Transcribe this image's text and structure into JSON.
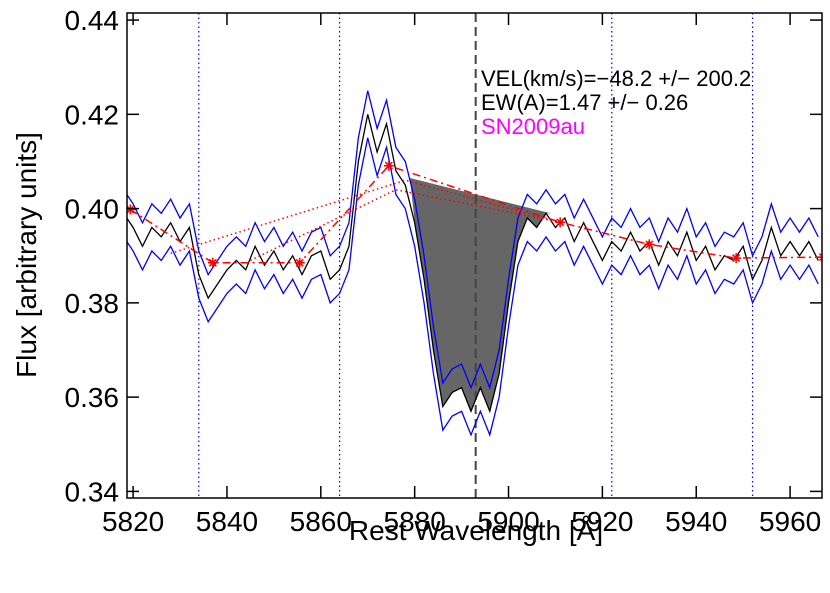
{
  "chart_data": {
    "type": "line",
    "xlabel": "Rest Wavelength [Å]",
    "ylabel": "Flux [arbitrary units]",
    "annotations": [
      "VEL(km/s)=−48.2 +/− 200.2",
      "EW(A)=1.47 +/− 0.26",
      "SN2009au"
    ],
    "annotation_colors": [
      "#000000",
      "#000000",
      "#ff00ff"
    ],
    "xlim": [
      5818.7,
      5966.8
    ],
    "ylim": [
      0.3386,
      0.4415
    ],
    "xticks": [
      5820,
      5840,
      5860,
      5880,
      5900,
      5920,
      5940,
      5960
    ],
    "yticks": [
      0.34,
      0.36,
      0.38,
      {
        "value": 0.4,
        "label": "0.40"
      },
      0.42,
      0.44
    ],
    "x": [
      5818,
      5820,
      5822,
      5824,
      5826,
      5828,
      5830,
      5832,
      5834,
      5836,
      5838,
      5840,
      5842,
      5844,
      5846,
      5848,
      5850,
      5852,
      5854,
      5856,
      5858,
      5860,
      5862,
      5864,
      5866,
      5868,
      5870,
      5872,
      5874,
      5876,
      5878,
      5880,
      5882,
      5884,
      5886,
      5888,
      5890,
      5892,
      5894,
      5896,
      5898,
      5900,
      5902,
      5904,
      5906,
      5908,
      5910,
      5912,
      5914,
      5916,
      5918,
      5920,
      5922,
      5924,
      5926,
      5928,
      5930,
      5932,
      5934,
      5936,
      5938,
      5940,
      5942,
      5944,
      5946,
      5948,
      5950,
      5952,
      5954,
      5956,
      5958,
      5960,
      5962,
      5964,
      5966
    ],
    "values": [
      0.399,
      0.396,
      0.392,
      0.396,
      0.394,
      0.397,
      0.393,
      0.396,
      0.386,
      0.381,
      0.384,
      0.387,
      0.389,
      0.387,
      0.392,
      0.388,
      0.391,
      0.387,
      0.39,
      0.386,
      0.39,
      0.391,
      0.385,
      0.387,
      0.392,
      0.41,
      0.42,
      0.412,
      0.418,
      0.408,
      0.405,
      0.397,
      0.385,
      0.37,
      0.358,
      0.361,
      0.362,
      0.357,
      0.362,
      0.357,
      0.365,
      0.38,
      0.393,
      0.398,
      0.396,
      0.399,
      0.396,
      0.398,
      0.393,
      0.397,
      0.393,
      0.389,
      0.393,
      0.391,
      0.395,
      0.391,
      0.393,
      0.388,
      0.393,
      0.39,
      0.395,
      0.389,
      0.392,
      0.387,
      0.39,
      0.389,
      0.392,
      0.385,
      0.389,
      0.396,
      0.39,
      0.393,
      0.39,
      0.393,
      0.389
    ],
    "color": "#000000",
    "error": 0.005,
    "error_color": "#0000ff",
    "continuum": {
      "x": [
        5819.4,
        5837,
        5855.5,
        5874.5,
        5911,
        5930,
        5948.5,
        5967
      ],
      "values": [
        0.3998,
        0.3885,
        0.3885,
        0.4091,
        0.3971,
        0.3924,
        0.3895,
        0.3897
      ],
      "color": "#ff0000"
    },
    "fit_lines": [
      {
        "x": [
          5828,
          5878,
          5911
        ],
        "values": [
          0.3905,
          0.406,
          0.3971
        ]
      },
      {
        "x": [
          5845,
          5876,
          5911
        ],
        "values": [
          0.389,
          0.404,
          0.3971
        ]
      }
    ],
    "fill": {
      "x": [
        5879,
        5909
      ],
      "values": [
        0.4065,
        0.399
      ],
      "color": "#666666"
    },
    "windows": [
      5834,
      5864,
      5922,
      5952
    ],
    "window_color": "#0000ff",
    "line_center": 5893
  }
}
